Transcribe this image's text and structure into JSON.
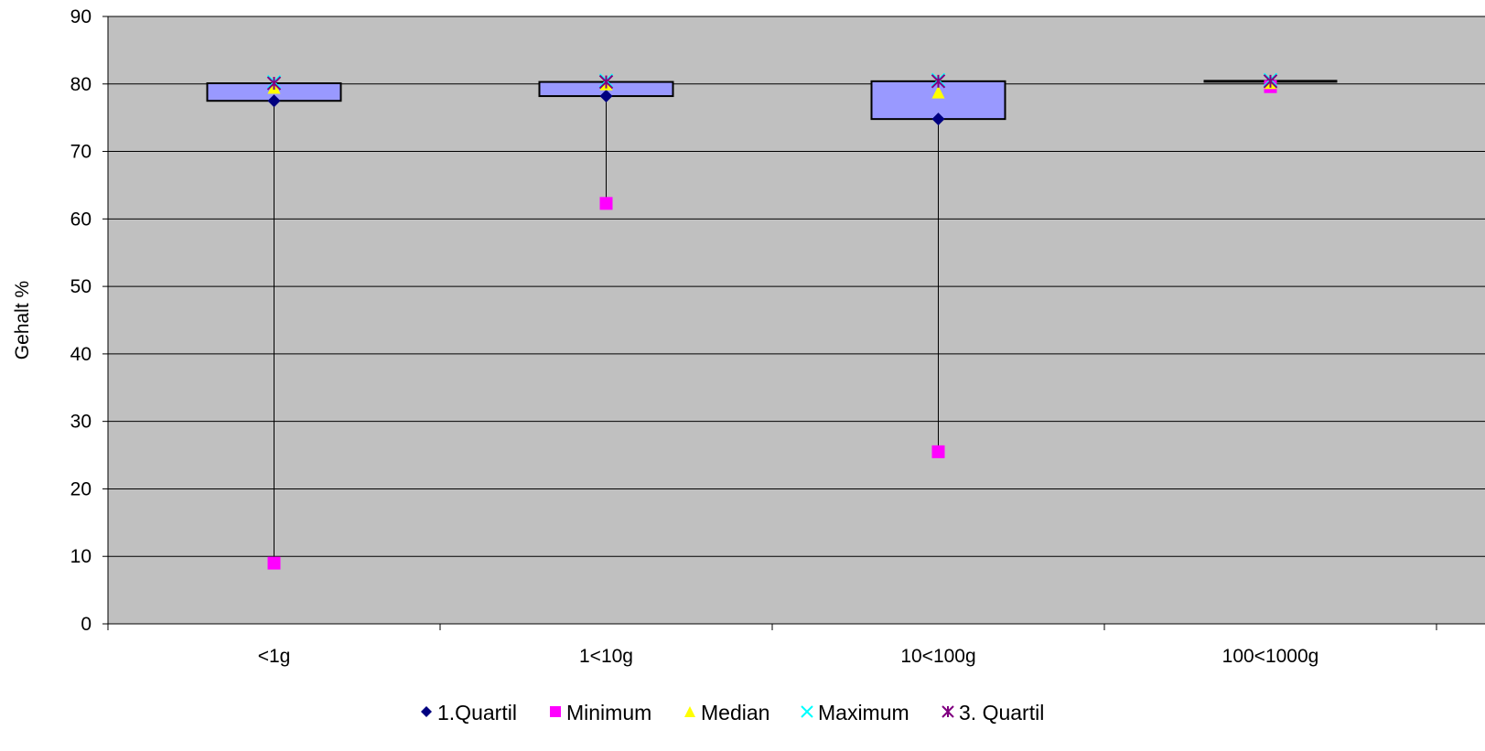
{
  "chart_data": {
    "type": "boxplot",
    "ylabel": "Gehalt %",
    "xlabel": "",
    "ylim": [
      0,
      90
    ],
    "yticks": [
      0,
      10,
      20,
      30,
      40,
      50,
      60,
      70,
      80,
      90
    ],
    "grid": true,
    "legend_position": "bottom",
    "categories": [
      "<1g",
      "1<10g",
      "10<100g",
      "100<1000g"
    ],
    "series": [
      {
        "name": "1.Quartil",
        "marker": "diamond",
        "color": "#000080",
        "values": [
          77.5,
          78.2,
          74.8,
          80.2
        ]
      },
      {
        "name": "Minimum",
        "marker": "square",
        "color": "#FF00FF",
        "values": [
          9,
          62.3,
          25.5,
          79.6
        ]
      },
      {
        "name": "Median",
        "marker": "triangle",
        "color": "#FFFF00",
        "values": [
          79.5,
          80,
          78.8,
          80.2
        ]
      },
      {
        "name": "Maximum",
        "marker": "x",
        "color": "#00FFFF",
        "values": [
          80.3,
          80.5,
          80.6,
          80.6
        ]
      },
      {
        "name": "3. Quartil",
        "marker": "asterisk",
        "color": "#800080",
        "values": [
          80.1,
          80.3,
          80.4,
          80.4
        ]
      }
    ],
    "box_fill": "#9999FF",
    "plot_background": "#C0C0C0"
  }
}
